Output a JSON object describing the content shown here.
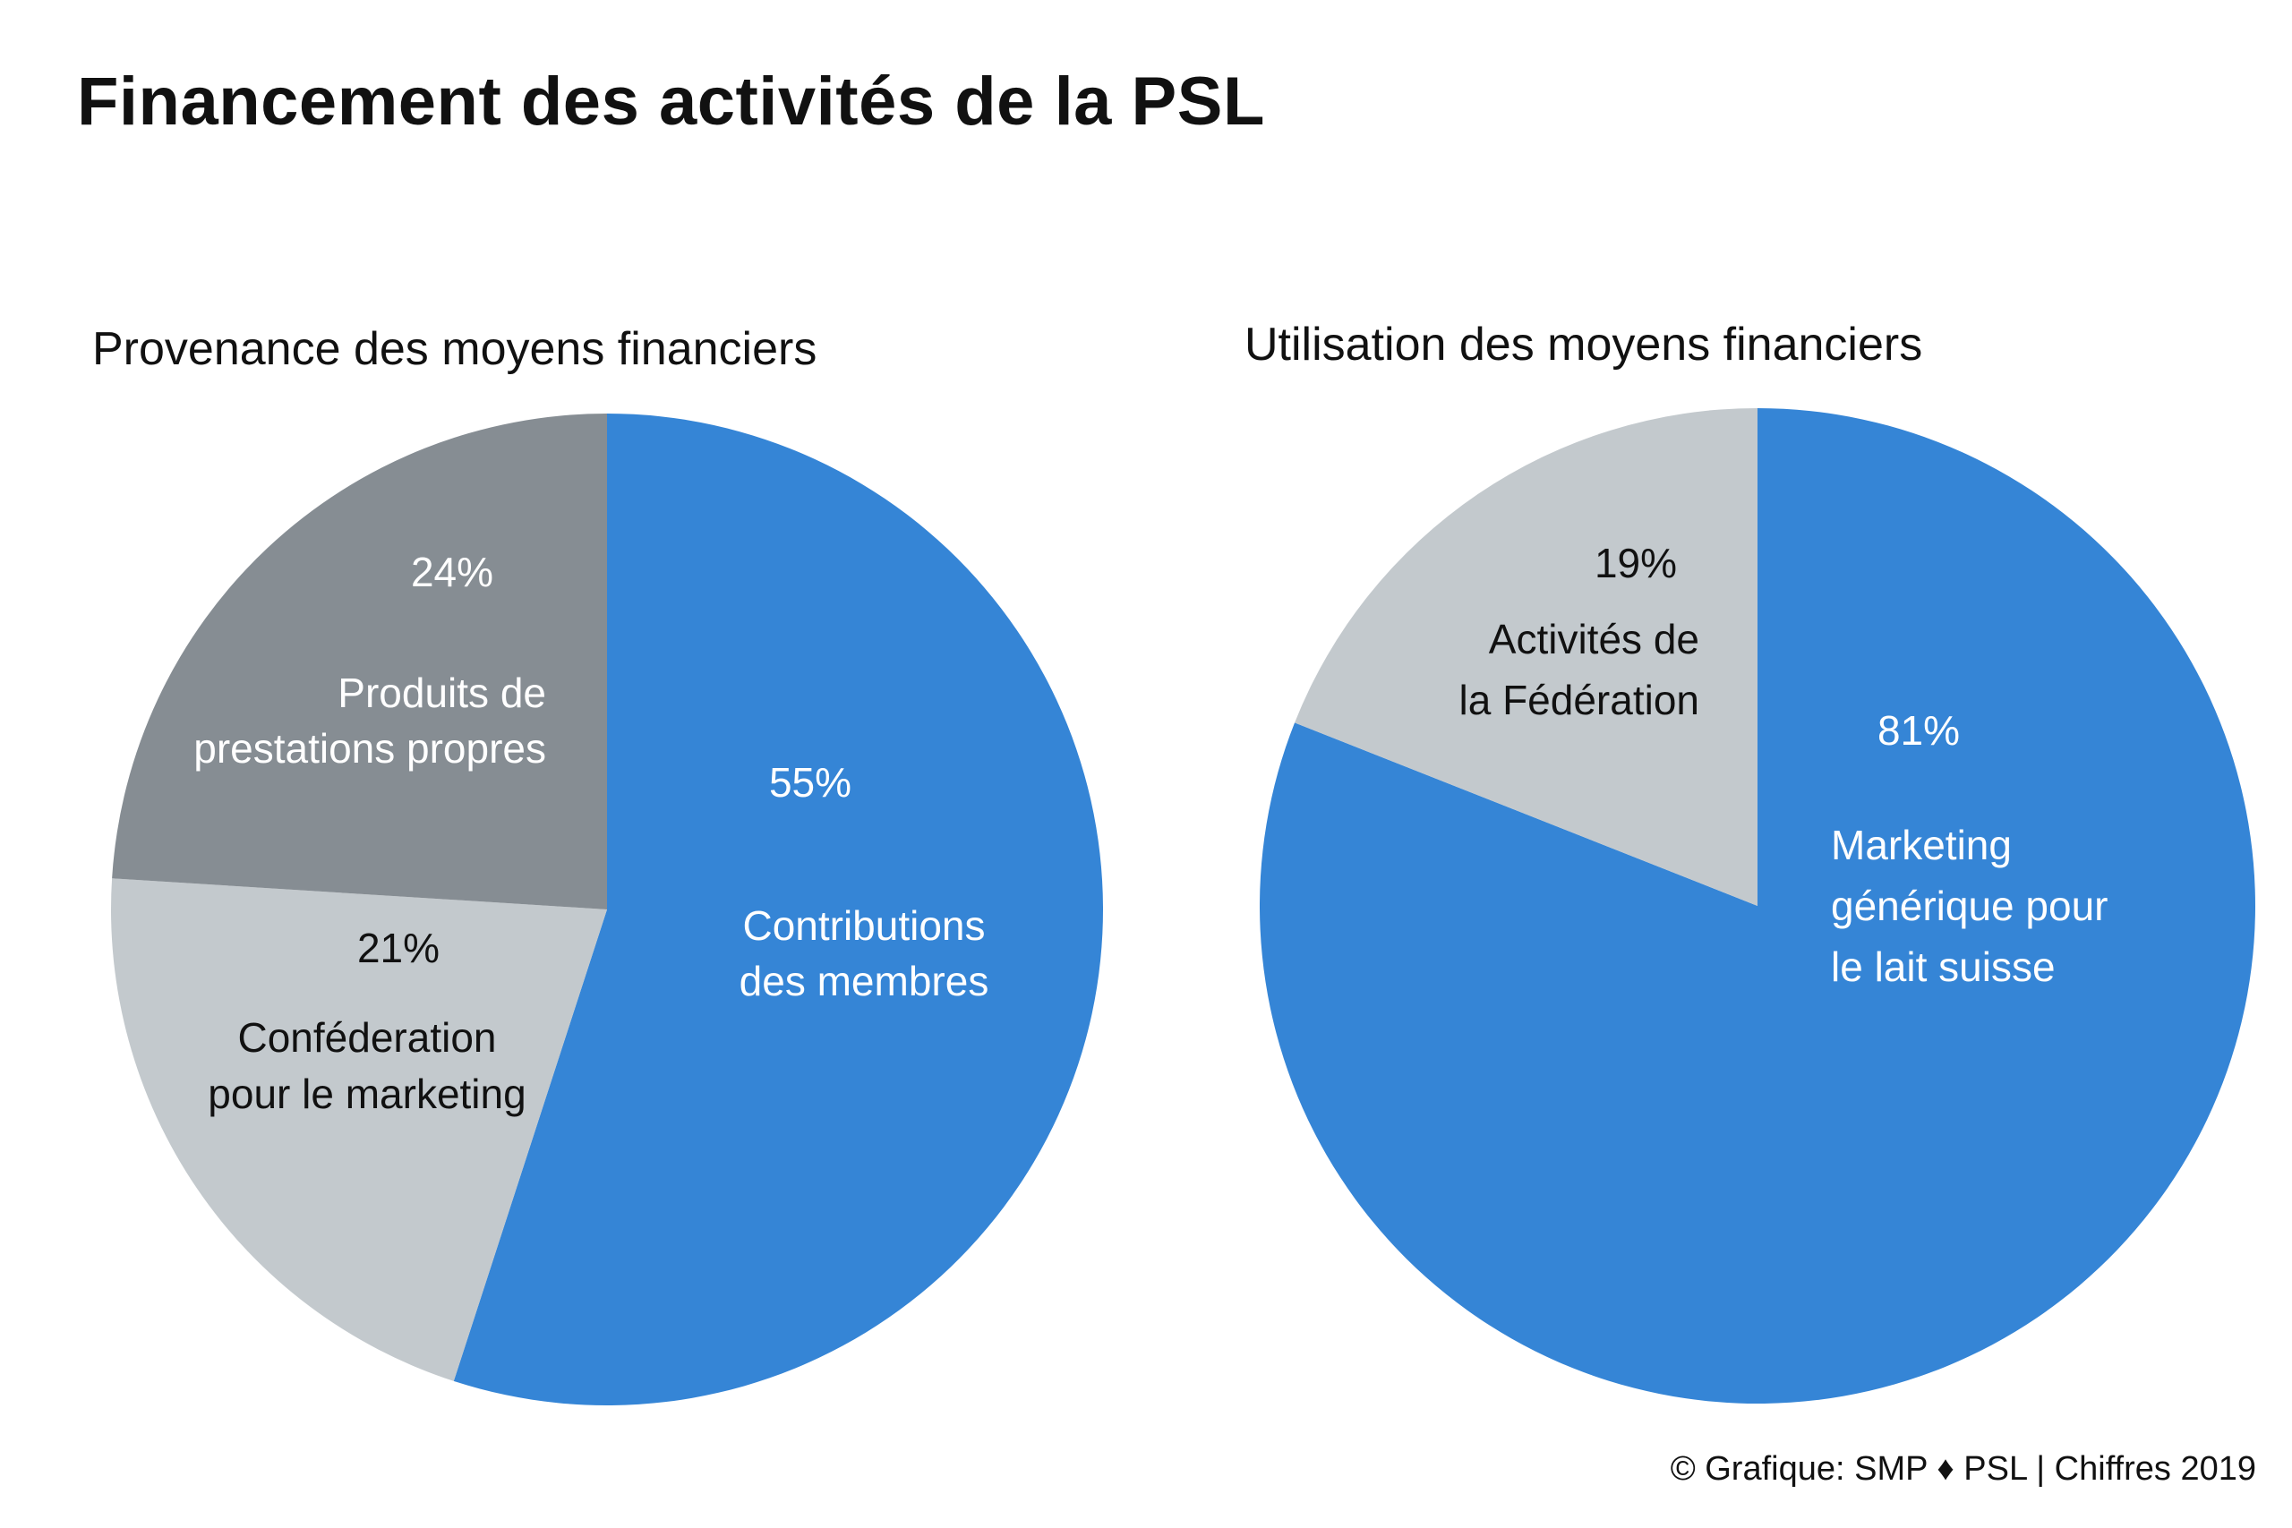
{
  "title": "Financement des activités de la PSL",
  "credit": "© Grafique: SMP ♦ PSL | Chiffres 2019",
  "chart_data": [
    {
      "type": "pie",
      "title": "Provenance des moyens financiers",
      "slices": [
        {
          "label": "Contributions des membres",
          "label_lines": [
            "Contributions",
            "des membres"
          ],
          "value": 55,
          "pct_text": "55%",
          "color": "#3585d6",
          "text_color": "#ffffff"
        },
        {
          "label": "Conféderation pour le marketing",
          "label_lines": [
            "Conféderation",
            "pour le marketing"
          ],
          "value": 21,
          "pct_text": "21%",
          "color": "#c3c9cd",
          "text_color": "#111111"
        },
        {
          "label": "Produits de prestations propres",
          "label_lines": [
            "Produits de",
            "prestations propres"
          ],
          "value": 24,
          "pct_text": "24%",
          "color": "#868d93",
          "text_color": "#ffffff"
        }
      ]
    },
    {
      "type": "pie",
      "title": "Utilisation des moyens financiers",
      "slices": [
        {
          "label": "Marketing générique pour le lait suisse",
          "label_lines": [
            "Marketing",
            "générique pour",
            "le lait suisse"
          ],
          "value": 81,
          "pct_text": "81%",
          "color": "#3585d6",
          "text_color": "#ffffff"
        },
        {
          "label": "Activités de la Fédération",
          "label_lines": [
            "Activités de",
            "la Fédération"
          ],
          "value": 19,
          "pct_text": "19%",
          "color": "#c3c9cd",
          "text_color": "#111111"
        }
      ]
    }
  ]
}
